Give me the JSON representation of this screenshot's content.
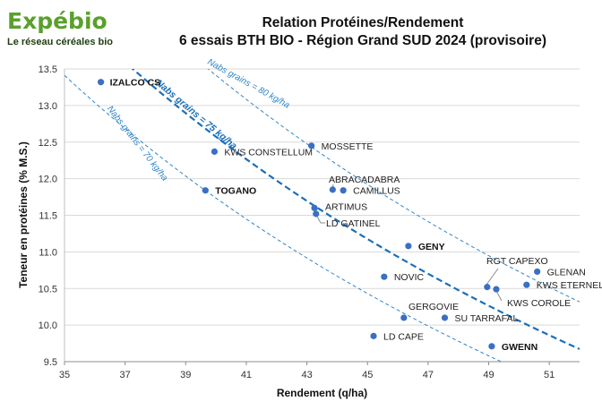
{
  "logo": {
    "name": "Expébio",
    "tagline": "Le réseau céréales bio"
  },
  "title_lines": [
    "Relation Protéines/Rendement",
    "6 essais BTH BIO - Région Grand SUD 2024 (provisoire)"
  ],
  "colors": {
    "point": "#3a6fc4",
    "curve": "#2e86c8",
    "curve_major": "#1b6fb8",
    "logo": "#5aa02c"
  },
  "chart_data": {
    "type": "scatter",
    "xlabel": "Rendement (q/ha)",
    "ylabel": "Teneur en protéines (% M.S.)",
    "xlim": [
      35,
      52
    ],
    "ylim": [
      9.5,
      13.5
    ],
    "x_ticks": [
      "35",
      "37",
      "39",
      "41",
      "43",
      "45",
      "47",
      "49",
      "51"
    ],
    "y_ticks": [
      "9.5",
      "10.0",
      "10.5",
      "11.0",
      "11.5",
      "12.0",
      "12.5",
      "13.0",
      "13.5"
    ],
    "grid": "horizontal",
    "points": [
      {
        "name": "IZALCO CS",
        "x": 36.2,
        "y": 13.32,
        "bold": true
      },
      {
        "name": "KWS CONSTELLUM",
        "x": 39.95,
        "y": 12.37,
        "bold": false
      },
      {
        "name": "TOGANO",
        "x": 39.65,
        "y": 11.84,
        "bold": true
      },
      {
        "name": "MOSSETTE",
        "x": 43.15,
        "y": 12.45,
        "bold": false
      },
      {
        "name": "ABRACADABRA",
        "x": 43.85,
        "y": 11.85,
        "bold": false
      },
      {
        "name": "CAMILLUS",
        "x": 44.2,
        "y": 11.84,
        "bold": false
      },
      {
        "name": "ARTIMUS",
        "x": 43.25,
        "y": 11.6,
        "bold": false
      },
      {
        "name": "LD GATINEL",
        "x": 43.3,
        "y": 11.52,
        "bold": false
      },
      {
        "name": "GENY",
        "x": 46.35,
        "y": 11.08,
        "bold": true
      },
      {
        "name": "NOVIC",
        "x": 45.55,
        "y": 10.66,
        "bold": false
      },
      {
        "name": "GERGOVIE",
        "x": 46.2,
        "y": 10.1,
        "bold": false
      },
      {
        "name": "SU TARRAFAL",
        "x": 47.55,
        "y": 10.1,
        "bold": false
      },
      {
        "name": "LD CAPE",
        "x": 45.2,
        "y": 9.85,
        "bold": false
      },
      {
        "name": "RGT CAPEXO",
        "x": 48.95,
        "y": 10.52,
        "bold": false
      },
      {
        "name": "GLENAN",
        "x": 50.6,
        "y": 10.73,
        "bold": false
      },
      {
        "name": "KWS ETERNEL",
        "x": 50.25,
        "y": 10.55,
        "bold": false
      },
      {
        "name": "KWS COROLE",
        "x": 49.25,
        "y": 10.49,
        "bold": false
      },
      {
        "name": "GWENN",
        "x": 49.1,
        "y": 9.71,
        "bold": true
      }
    ],
    "curves": [
      {
        "label": "Nabs grains = 70 kg/ha",
        "n": 70,
        "style": "dashed-thin"
      },
      {
        "label": "Nabs grains = 75 kg/ha",
        "n": 75,
        "style": "dashed-bold"
      },
      {
        "label": "Nabs grains = 80 kg/ha",
        "n": 80,
        "style": "dashed-thin"
      }
    ]
  }
}
